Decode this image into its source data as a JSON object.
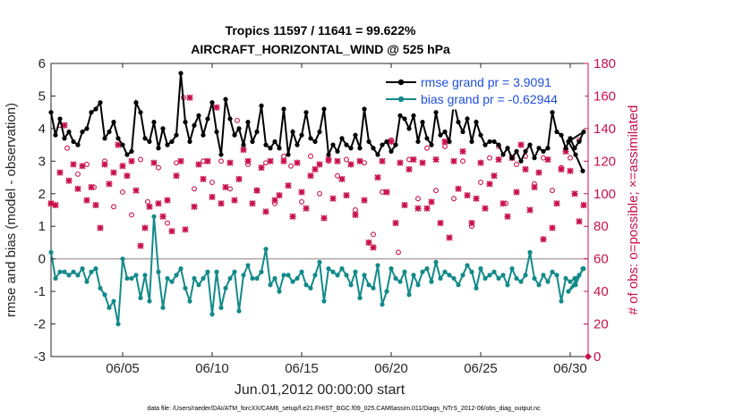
{
  "chart_data": {
    "type": "line",
    "title_line1": "Tropics 11597 / 11641 = 99.622%",
    "title_line2": "AIRCRAFT_HORIZONTAL_WIND @ 525 hPa",
    "xlabel": "Jun.01,2012 00:00:00 start",
    "ylabel_left": "rmse and bias (model - observation)",
    "ylabel_right": "# of obs: o=possible; ×=assimilated",
    "footnote": "data file: /Users/raeder/DAI/ATM_forcXX/CAM6_setup/f.e21.FHIST_BGC.f09_025.CAM6assim.011/Diags_NTrS_2012-06/obs_diag_output.nc",
    "x_ticks": [
      "06/05",
      "06/10",
      "06/15",
      "06/20",
      "06/25",
      "06/30"
    ],
    "x_tick_values": [
      5,
      10,
      15,
      20,
      25,
      30
    ],
    "xlim": [
      1.0,
      31.0
    ],
    "ylim_left": [
      -3,
      6
    ],
    "y_ticks_left": [
      "-3",
      "-2",
      "-1",
      "0",
      "1",
      "2",
      "3",
      "4",
      "5",
      "6"
    ],
    "ylim_right": [
      0,
      180
    ],
    "y_ticks_right": [
      "0",
      "20",
      "40",
      "60",
      "80",
      "100",
      "120",
      "140",
      "160",
      "180"
    ],
    "grid": false,
    "zero_line": 0,
    "legend_position": "top-right",
    "x": [
      1.0,
      1.25,
      1.5,
      1.75,
      2.0,
      2.25,
      2.5,
      2.75,
      3.0,
      3.25,
      3.5,
      3.75,
      4.0,
      4.25,
      4.5,
      4.75,
      5.0,
      5.25,
      5.5,
      5.75,
      6.0,
      6.25,
      6.5,
      6.75,
      7.0,
      7.25,
      7.5,
      7.75,
      8.0,
      8.25,
      8.5,
      8.75,
      9.0,
      9.25,
      9.5,
      9.75,
      10.0,
      10.25,
      10.5,
      10.75,
      11.0,
      11.25,
      11.5,
      11.75,
      12.0,
      12.25,
      12.5,
      12.75,
      13.0,
      13.25,
      13.5,
      13.75,
      14.0,
      14.25,
      14.5,
      14.75,
      15.0,
      15.25,
      15.5,
      15.75,
      16.0,
      16.25,
      16.5,
      16.75,
      17.0,
      17.25,
      17.5,
      17.75,
      18.0,
      18.25,
      18.5,
      18.75,
      19.0,
      19.25,
      19.5,
      19.75,
      20.0,
      20.25,
      20.5,
      20.75,
      21.0,
      21.25,
      21.5,
      21.75,
      22.0,
      22.25,
      22.5,
      22.75,
      23.0,
      23.25,
      23.5,
      23.75,
      24.0,
      24.25,
      24.5,
      24.75,
      25.0,
      25.25,
      25.5,
      25.75,
      26.0,
      26.25,
      26.5,
      26.75,
      27.0,
      27.25,
      27.5,
      27.75,
      28.0,
      28.25,
      28.5,
      28.75,
      29.0,
      29.25,
      29.5,
      29.75,
      30.0,
      30.25,
      30.5,
      30.75
    ],
    "series": [
      {
        "name": "rmse grand pr = 3.9091",
        "color": "#000000",
        "axis": "left",
        "values": [
          4.5,
          3.8,
          4.3,
          3.7,
          3.9,
          3.6,
          3.5,
          3.9,
          4.0,
          4.5,
          4.6,
          4.8,
          3.7,
          3.9,
          4.2,
          3.7,
          3.5,
          3.2,
          3.3,
          4.8,
          4.5,
          3.7,
          3.6,
          4.2,
          3.4,
          4.0,
          3.5,
          3.6,
          3.8,
          5.7,
          4.2,
          3.6,
          4.1,
          4.4,
          3.8,
          4.3,
          4.8,
          3.9,
          3.2,
          4.9,
          4.3,
          3.8,
          4.0,
          3.5,
          4.2,
          3.6,
          3.9,
          4.7,
          3.5,
          3.4,
          3.6,
          3.4,
          4.6,
          3.2,
          3.9,
          3.5,
          3.8,
          4.5,
          3.7,
          3.6,
          3.9,
          4.6,
          3.2,
          3.5,
          3.3,
          3.7,
          3.5,
          3.4,
          3.8,
          3.4,
          4.6,
          3.6,
          3.4,
          3.2,
          3.5,
          3.6,
          3.3,
          3.5,
          4.4,
          4.3,
          4.0,
          4.4,
          3.6,
          4.2,
          3.7,
          3.5,
          4.5,
          3.8,
          3.9,
          3.6,
          4.8,
          4.2,
          3.9,
          4.3,
          3.6,
          4.2,
          3.8,
          3.5,
          3.6,
          3.6,
          3.5,
          3.2,
          3.4,
          3.1,
          3.3,
          3.0,
          3.3,
          3.5,
          3.1,
          3.4,
          3.3,
          3.4,
          4.5,
          3.9,
          3.8,
          3.4,
          3.7,
          3.4,
          3.6,
          3.9
        ],
        "extra": {
          "x": [
            29.9,
            30.3,
            30.7
          ],
          "values": [
            3.6,
            3.2,
            2.7
          ]
        }
      },
      {
        "name": "bias grand pr = -0.62944",
        "color": "#138a8a",
        "axis": "left",
        "values": [
          0.2,
          -0.6,
          -0.4,
          -0.4,
          -0.5,
          -0.4,
          -0.5,
          -0.3,
          -0.7,
          -0.4,
          -0.3,
          -0.9,
          -1.1,
          -1.5,
          -1.3,
          -2.0,
          0.0,
          -0.6,
          -0.6,
          -0.5,
          -1.2,
          -0.5,
          -1.3,
          1.3,
          -0.4,
          -1.5,
          -0.6,
          -0.7,
          -0.5,
          -0.3,
          -0.9,
          -1.3,
          -0.6,
          -0.8,
          -0.6,
          -0.4,
          -1.7,
          -0.4,
          -1.5,
          -0.9,
          -0.6,
          -0.4,
          -1.6,
          -0.5,
          -0.2,
          -0.6,
          -0.6,
          -0.4,
          0.3,
          -0.8,
          -0.6,
          -1.0,
          -0.5,
          -0.5,
          -0.7,
          -0.6,
          -0.4,
          -0.8,
          -0.9,
          -0.5,
          -0.1,
          -1.3,
          -0.3,
          -0.4,
          -0.5,
          -0.3,
          -0.5,
          -0.8,
          -0.4,
          -1.2,
          -0.5,
          -0.8,
          -0.9,
          -0.2,
          -1.4,
          -1.0,
          -0.3,
          -0.6,
          -0.7,
          -0.4,
          -1.1,
          -0.5,
          -0.8,
          -0.4,
          -0.3,
          -0.7,
          -0.1,
          -0.6,
          -0.4,
          -0.5,
          -0.6,
          -0.8,
          -0.5,
          -0.2,
          -0.4,
          -0.9,
          -0.3,
          -0.6,
          -0.5,
          -0.4,
          -0.6,
          -0.5,
          -0.8,
          -0.3,
          -0.6,
          -0.7,
          -0.5,
          0.2,
          -0.6,
          -0.8,
          -0.5,
          -0.7,
          -0.4,
          -0.5,
          -1.3,
          -0.6,
          -0.7,
          -0.6,
          -0.5,
          -0.3
        ],
        "extra": {
          "x": [
            29.9,
            30.3,
            30.7
          ],
          "values": [
            -1.0,
            -0.8,
            -0.3
          ]
        }
      }
    ],
    "obs_possible": {
      "name": "possible",
      "color": "#c8114b",
      "axis": "right",
      "x": [
        1.0,
        1.5,
        1.9,
        2.5,
        3.0,
        3.4,
        4.0,
        4.5,
        5.0,
        5.5,
        6.0,
        6.4,
        7.0,
        7.5,
        8.0,
        8.4,
        9.0,
        9.5,
        10.0,
        10.5,
        11.0,
        11.4,
        12.0,
        12.5,
        13.0,
        13.5,
        14.0,
        14.4,
        15.0,
        15.5,
        16.0,
        16.5,
        17.0,
        17.5,
        18.0,
        18.5,
        19.0,
        19.5,
        20.0,
        20.4,
        21.0,
        21.5,
        22.0,
        22.5,
        23.0,
        23.5,
        24.0,
        24.5,
        25.0,
        25.5,
        26.0,
        26.4,
        27.0,
        27.5,
        28.0,
        28.5,
        29.0,
        29.5,
        30.0,
        30.5
      ],
      "values": [
        94,
        142,
        128,
        112,
        118,
        104,
        120,
        92,
        101,
        87,
        121,
        95,
        116,
        82,
        119,
        159,
        103,
        120,
        107,
        120,
        103,
        145,
        118,
        102,
        119,
        94,
        123,
        117,
        95,
        123,
        100,
        120,
        111,
        121,
        90,
        119,
        75,
        101,
        133,
        64,
        121,
        97,
        128,
        102,
        129,
        97,
        120,
        80,
        107,
        122,
        129,
        94,
        118,
        123,
        106,
        122,
        102,
        116,
        122,
        133
      ]
    },
    "obs_assimilated": {
      "name": "assimilated",
      "color": "#c8114b",
      "axis": "right",
      "x": [
        1.0,
        1.25,
        1.5,
        1.75,
        2.0,
        2.25,
        2.5,
        2.75,
        3.0,
        3.25,
        3.5,
        3.75,
        4.0,
        4.25,
        4.5,
        4.75,
        5.0,
        5.25,
        5.5,
        5.75,
        6.0,
        6.25,
        6.5,
        6.75,
        7.0,
        7.25,
        7.5,
        7.75,
        8.0,
        8.25,
        8.5,
        8.75,
        9.0,
        9.25,
        9.5,
        9.75,
        10.0,
        10.25,
        10.5,
        10.75,
        11.0,
        11.25,
        11.5,
        11.75,
        12.0,
        12.25,
        12.5,
        12.75,
        13.0,
        13.25,
        13.5,
        13.75,
        14.0,
        14.25,
        14.5,
        14.75,
        15.0,
        15.25,
        15.5,
        15.75,
        16.0,
        16.25,
        16.5,
        16.75,
        17.0,
        17.25,
        17.5,
        17.75,
        18.0,
        18.25,
        18.5,
        18.75,
        19.0,
        19.25,
        19.5,
        19.75,
        20.0,
        20.25,
        20.5,
        20.75,
        21.0,
        21.25,
        21.5,
        21.75,
        22.0,
        22.25,
        22.5,
        22.75,
        23.0,
        23.25,
        23.5,
        23.75,
        24.0,
        24.25,
        24.5,
        24.75,
        25.0,
        25.25,
        25.5,
        25.75,
        26.0,
        26.25,
        26.5,
        26.75,
        27.0,
        27.25,
        27.5,
        27.75,
        28.0,
        28.25,
        28.5,
        28.75,
        29.0,
        29.25,
        29.5,
        29.75,
        30.0,
        30.25,
        30.5,
        30.75
      ],
      "values": [
        94,
        93,
        113,
        142,
        108,
        118,
        103,
        117,
        96,
        104,
        93,
        79,
        118,
        106,
        113,
        130,
        117,
        111,
        120,
        102,
        68,
        79,
        92,
        119,
        94,
        86,
        96,
        77,
        111,
        120,
        78,
        159,
        92,
        118,
        109,
        120,
        98,
        153,
        94,
        104,
        119,
        96,
        109,
        127,
        120,
        94,
        102,
        116,
        89,
        120,
        96,
        99,
        120,
        105,
        86,
        119,
        101,
        91,
        111,
        115,
        118,
        85,
        121,
        97,
        120,
        109,
        99,
        118,
        87,
        120,
        96,
        70,
        67,
        110,
        120,
        101,
        132,
        82,
        119,
        93,
        115,
        121,
        91,
        119,
        91,
        95,
        121,
        82,
        132,
        73,
        120,
        103,
        126,
        99,
        82,
        97,
        119,
        91,
        106,
        111,
        121,
        94,
        86,
        122,
        101,
        130,
        115,
        90,
        104,
        113,
        72,
        121,
        79,
        94,
        115,
        126,
        114,
        100,
        83,
        93
      ]
    }
  }
}
